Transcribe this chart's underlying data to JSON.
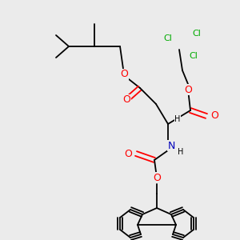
{
  "bg_color": "#ebebeb",
  "atom_colors": {
    "C": "#000000",
    "O": "#ff0000",
    "N": "#0000bb",
    "Cl": "#00aa00",
    "H": "#000000"
  },
  "figsize": [
    3.0,
    3.0
  ],
  "dpi": 100
}
